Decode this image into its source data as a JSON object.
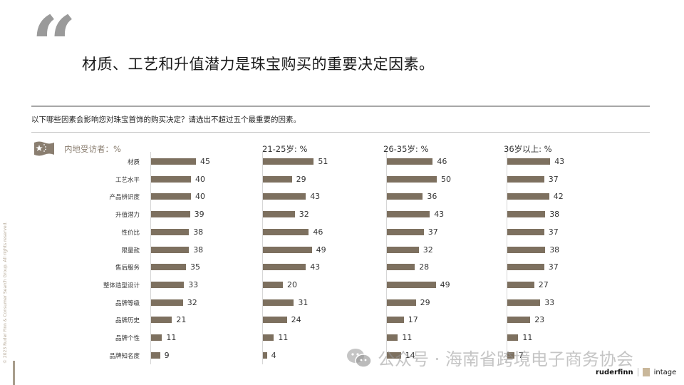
{
  "header": {
    "quote_mark": "“",
    "headline": "材质、工艺和升值潜力是珠宝购买的重要决定因素。"
  },
  "question": "以下哪些因素会影响您对珠宝首饰的购买决定？请选出不超过五个最重要的因素。",
  "colors": {
    "bar": "#7d705f",
    "rule": "#a7a7a7",
    "quote": "#9a9a9a"
  },
  "chart_data": {
    "type": "bar",
    "orientation": "horizontal",
    "title": "材质、工艺和升值潜力是珠宝购买的重要决定因素。",
    "subtitle": "以下哪些因素会影响您对珠宝首饰的购买决定？请选出不超过五个最重要的因素。",
    "categories": [
      "材质",
      "工艺水平",
      "产品辨识度",
      "升值潜力",
      "性价比",
      "限量款",
      "售后服务",
      "整体造型设计",
      "品牌等级",
      "品牌历史",
      "品牌个性",
      "品牌知名度"
    ],
    "series": [
      {
        "name": "内地受访者：%",
        "values": [
          45,
          40,
          40,
          39,
          38,
          38,
          35,
          33,
          32,
          21,
          11,
          9
        ]
      },
      {
        "name": "21-25岁：%",
        "values": [
          51,
          29,
          43,
          32,
          46,
          49,
          43,
          20,
          31,
          24,
          11,
          4
        ]
      },
      {
        "name": "26-35岁：%",
        "values": [
          46,
          50,
          36,
          43,
          37,
          32,
          28,
          49,
          29,
          17,
          11,
          14
        ]
      },
      {
        "name": "36岁以上：%",
        "values": [
          43,
          37,
          42,
          38,
          37,
          38,
          37,
          27,
          33,
          23,
          11,
          7
        ]
      }
    ],
    "xlabel": "",
    "ylabel": "",
    "unit": "%",
    "grid": false,
    "legend": "panel titles"
  },
  "panels": [
    {
      "title": "内地受访者：%"
    },
    {
      "title": "21-25岁: %"
    },
    {
      "title": "26-35岁: %"
    },
    {
      "title": "36岁以上: %"
    }
  ],
  "footer": {
    "copyright": "© 2023 Ruder Finn & Consumer Search Group. All rights reserved.",
    "watermark": "公众号 · 海南省跨境电子商务协会",
    "logo_ruderfinn": "ruderfinn",
    "logo_intage": "intage"
  }
}
